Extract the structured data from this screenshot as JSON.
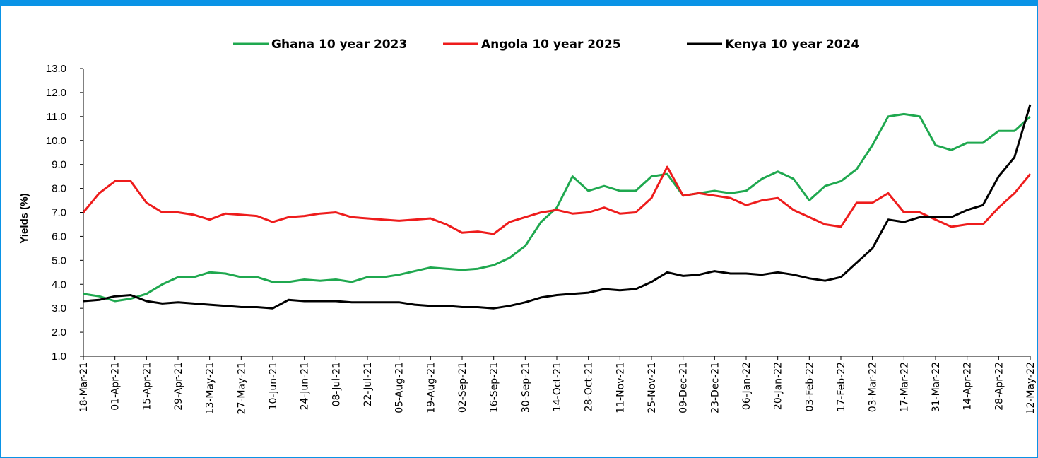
{
  "chart_data": {
    "type": "line",
    "ylabel": "Yields (%)",
    "categories": [
      "18-Mar-21",
      null,
      "01-Apr-21",
      null,
      "15-Apr-21",
      null,
      "29-Apr-21",
      null,
      "13-May-21",
      null,
      "27-May-21",
      null,
      "10-Jun-21",
      null,
      "24-Jun-21",
      null,
      "08-Jul-21",
      null,
      "22-Jul-21",
      null,
      "05-Aug-21",
      null,
      "19-Aug-21",
      null,
      "02-Sep-21",
      null,
      "16-Sep-21",
      null,
      "30-Sep-21",
      null,
      "14-Oct-21",
      null,
      "28-Oct-21",
      null,
      "11-Nov-21",
      null,
      "25-Nov-21",
      null,
      "09-Dec-21",
      null,
      "23-Dec-21",
      null,
      "06-Jan-22",
      null,
      "20-Jan-22",
      null,
      "03-Feb-22",
      null,
      "17-Feb-22",
      null,
      "03-Mar-22",
      null,
      "17-Mar-22",
      null,
      "31-Mar-22",
      null,
      "14-Apr-22",
      null,
      "28-Apr-22",
      null,
      "12-May-22"
    ],
    "series": [
      {
        "name": "Ghana 10 year 2023",
        "color": "#1fa84f",
        "values": [
          3.6,
          3.5,
          3.3,
          3.4,
          3.6,
          4.0,
          4.3,
          4.3,
          4.5,
          4.45,
          4.3,
          4.3,
          4.1,
          4.1,
          4.2,
          4.15,
          4.2,
          4.1,
          4.3,
          4.3,
          4.4,
          4.55,
          4.7,
          4.65,
          4.6,
          4.65,
          4.8,
          5.1,
          5.6,
          6.6,
          7.2,
          8.5,
          7.9,
          8.1,
          7.9,
          7.9,
          8.5,
          8.6,
          7.7,
          7.8,
          7.9,
          7.8,
          7.9,
          8.4,
          8.7,
          8.4,
          7.5,
          8.1,
          8.3,
          8.8,
          9.8,
          11.0,
          11.1,
          11.0,
          9.8,
          9.6,
          9.9,
          9.9,
          10.4,
          10.4,
          11.0
        ]
      },
      {
        "name": "Angola 10 year 2025",
        "color": "#ee1c1c",
        "values": [
          7.0,
          7.8,
          8.3,
          8.3,
          7.4,
          7.0,
          7.0,
          6.9,
          6.7,
          6.95,
          6.9,
          6.85,
          6.6,
          6.8,
          6.85,
          6.95,
          7.0,
          6.8,
          6.75,
          6.7,
          6.65,
          6.7,
          6.75,
          6.5,
          6.15,
          6.2,
          6.1,
          6.6,
          6.8,
          7.0,
          7.1,
          6.95,
          7.0,
          7.2,
          6.95,
          7.0,
          7.6,
          8.9,
          7.7,
          7.8,
          7.7,
          7.6,
          7.3,
          7.5,
          7.6,
          7.1,
          6.8,
          6.5,
          6.4,
          7.4,
          7.4,
          7.8,
          7.0,
          7.0,
          6.7,
          6.4,
          6.5,
          6.5,
          7.2,
          7.8,
          8.6
        ]
      },
      {
        "name": "Kenya 10 year 2024",
        "color": "#000000",
        "values": [
          3.3,
          3.35,
          3.5,
          3.55,
          3.3,
          3.2,
          3.25,
          3.2,
          3.15,
          3.1,
          3.05,
          3.05,
          3.0,
          3.35,
          3.3,
          3.3,
          3.3,
          3.25,
          3.25,
          3.25,
          3.25,
          3.15,
          3.1,
          3.1,
          3.05,
          3.05,
          3.0,
          3.1,
          3.25,
          3.45,
          3.55,
          3.6,
          3.65,
          3.8,
          3.75,
          3.8,
          4.1,
          4.5,
          4.35,
          4.4,
          4.55,
          4.45,
          4.45,
          4.4,
          4.5,
          4.4,
          4.25,
          4.15,
          4.3,
          4.9,
          5.5,
          6.7,
          6.6,
          6.8,
          6.8,
          6.8,
          7.1,
          7.3,
          8.5,
          9.3,
          11.5
        ]
      }
    ],
    "ylim": [
      1,
      13
    ],
    "yticks": [
      {
        "value": 1,
        "label": "1.0"
      },
      {
        "value": 2,
        "label": "2.0"
      },
      {
        "value": 3,
        "label": "3.0"
      },
      {
        "value": 4,
        "label": "4.0"
      },
      {
        "value": 5,
        "label": "5.0"
      },
      {
        "value": 6,
        "label": "6.0"
      },
      {
        "value": 7,
        "label": "7.0"
      },
      {
        "value": 8,
        "label": "8.0"
      },
      {
        "value": 9,
        "label": "9.0"
      },
      {
        "value": 10,
        "label": "10.0"
      },
      {
        "value": 11,
        "label": "11.0"
      },
      {
        "value": 12,
        "label": "12.0"
      },
      {
        "value": 13,
        "label": "13.0"
      }
    ],
    "grid": false,
    "legend": "top"
  }
}
